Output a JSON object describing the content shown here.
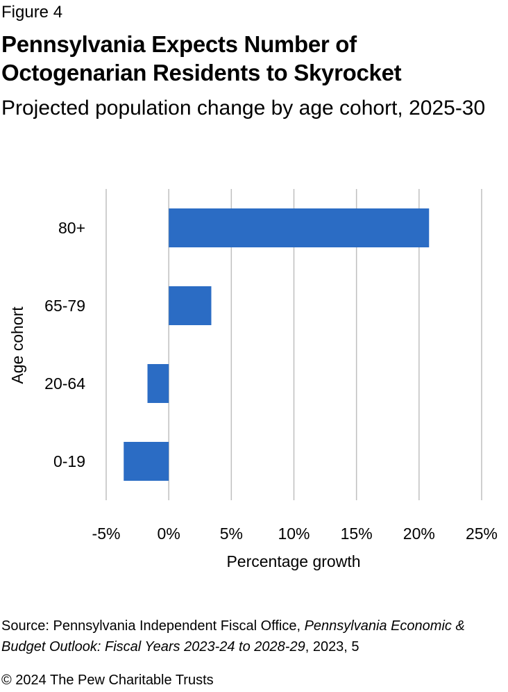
{
  "figure_label": "Figure 4",
  "title": "Pennsylvania Expects Number of Octogenarian Residents to Skyrocket",
  "subtitle": "Projected population change by age cohort, 2025-30",
  "chart_data": {
    "type": "bar",
    "orientation": "horizontal",
    "categories": [
      "0-19",
      "20-64",
      "65-79",
      "80+"
    ],
    "values": [
      -3.6,
      -1.7,
      3.4,
      20.8
    ],
    "units": "%",
    "xlabel": "Percentage growth",
    "ylabel": "Age cohort",
    "xlim": [
      -5,
      25
    ],
    "xticks": [
      -5,
      0,
      5,
      10,
      15,
      20,
      25
    ],
    "xtick_labels": [
      "-5%",
      "0%",
      "5%",
      "10%",
      "15%",
      "20%",
      "25%"
    ],
    "grid": "vertical",
    "legend": "none",
    "bar_color": "#2B6CC4",
    "grid_color": "#BFBFBF"
  },
  "source": {
    "prefix": "Source: Pennsylvania Independent Fiscal Office, ",
    "publication": "Pennsylvania Economic & Budget Outlook: Fiscal Years 2023-24 to 2028-29",
    "suffix": ", 2023, 5"
  },
  "copyright": "© 2024 The Pew Charitable Trusts"
}
